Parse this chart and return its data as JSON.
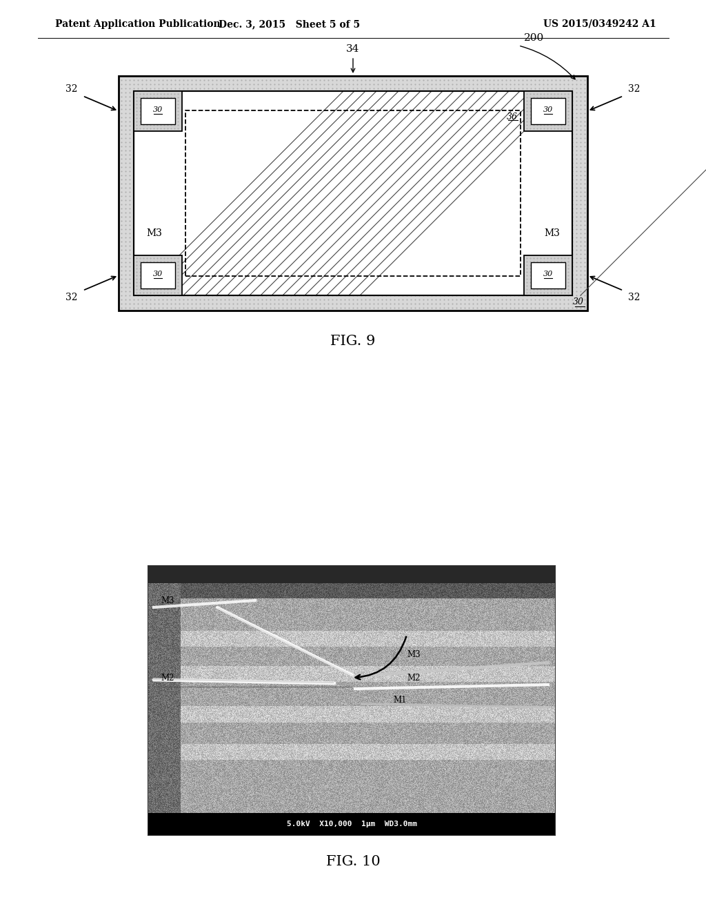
{
  "header_left": "Patent Application Publication",
  "header_mid": "Dec. 3, 2015   Sheet 5 of 5",
  "header_right": "US 2015/0349242 A1",
  "fig9_label": "FIG. 9",
  "fig10_label": "FIG. 10",
  "fig9_ref_200": "200",
  "fig9_ref_34": "34",
  "fig9_ref_36": "36",
  "fig9_ref_32": "32",
  "fig9_ref_30": "30",
  "fig9_ref_M3": "M3",
  "fig10_bottom_text": "5.0kV  X10,000  1μm  WD3.0mm",
  "bg_color": "#ffffff"
}
